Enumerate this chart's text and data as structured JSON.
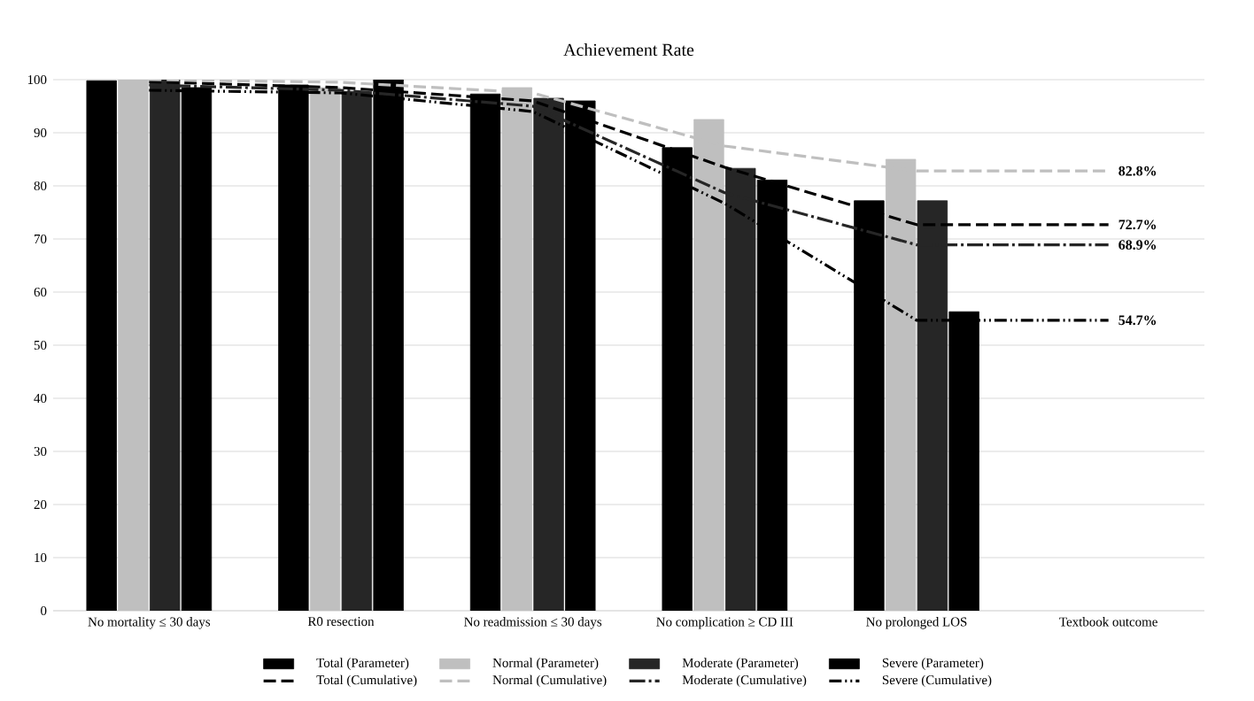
{
  "chart_data": {
    "type": "bar",
    "title": "Achievement Rate",
    "categories": [
      "No mortality  ≤ 30 days",
      "R0 resection",
      "No readmission  ≤ 30 days",
      "No complication  ≥ CD III",
      "No prolonged LOS",
      "Textbook outcome"
    ],
    "series": [
      {
        "name": "Total (Parameter)",
        "color": "#000000",
        "values": [
          99.8,
          99.0,
          97.3,
          87.2,
          77.2,
          null
        ]
      },
      {
        "name": "Normal (Parameter)",
        "color": "#bfbfbf",
        "values": [
          100,
          98.5,
          98.5,
          92.5,
          85.0,
          null
        ]
      },
      {
        "name": "Moderate (Parameter)",
        "color": "#262626",
        "values": [
          100,
          97.8,
          96.5,
          83.3,
          77.2,
          null
        ]
      },
      {
        "name": "Severe (Parameter)",
        "color": "#000000",
        "values": [
          98.5,
          100,
          96.0,
          81.1,
          56.3,
          null
        ]
      },
      {
        "name": "Total (Cumulative)",
        "type": "line",
        "line_style": "dashed",
        "color": "#000000",
        "values": [
          99.6,
          98.5,
          96.0,
          83.5,
          72.7,
          72.7
        ],
        "value_labels": [
          null,
          null,
          null,
          null,
          null,
          "72.7%"
        ]
      },
      {
        "name": "Normal (Cumulative)",
        "type": "line",
        "line_style": "dashed",
        "color": "#bfbfbf",
        "values": [
          100,
          99.5,
          97.5,
          87.5,
          82.8,
          82.8
        ],
        "value_labels": [
          null,
          null,
          null,
          null,
          null,
          "82.8%"
        ]
      },
      {
        "name": "Moderate (Cumulative)",
        "type": "line",
        "line_style": "dashdot",
        "color": "#262626",
        "values": [
          99.0,
          98.0,
          95.0,
          78.7,
          68.9,
          68.9
        ],
        "value_labels": [
          null,
          null,
          null,
          null,
          null,
          "68.9%"
        ]
      },
      {
        "name": "Severe (Cumulative)",
        "type": "line",
        "line_style": "dashdotdot",
        "color": "#000000",
        "values": [
          98.0,
          97.5,
          94.0,
          76.7,
          54.7,
          54.7
        ],
        "value_labels": [
          null,
          null,
          null,
          null,
          null,
          "54.7%"
        ]
      }
    ],
    "ylim": [
      0,
      100
    ],
    "yticks": [
      0,
      10,
      20,
      30,
      40,
      50,
      60,
      70,
      80,
      90,
      100
    ],
    "grid": "y",
    "legend": "bottom"
  }
}
